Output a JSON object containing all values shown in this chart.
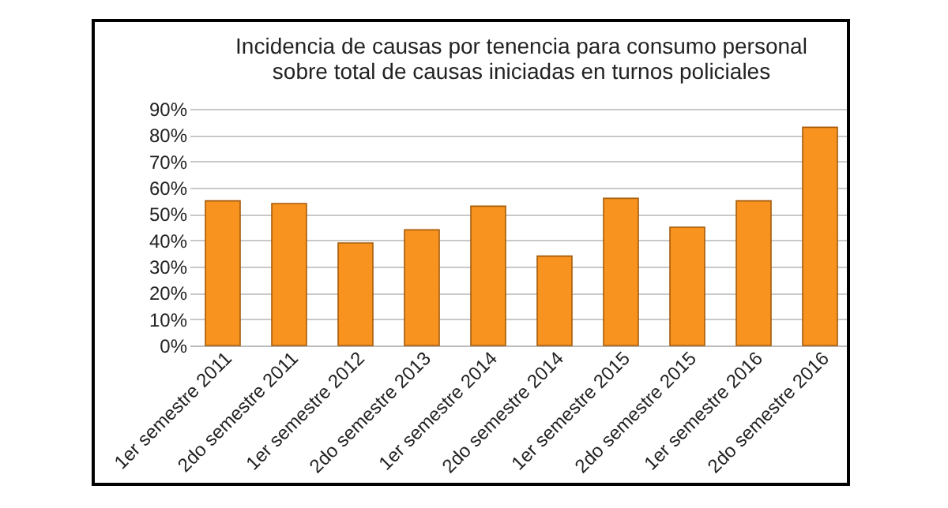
{
  "chart_data": {
    "type": "bar",
    "title": "Incidencia de causas por tenencia para consumo personal\nsobre total de causas iniciadas en turnos policiales",
    "categories": [
      "1er semestre 2011",
      "2do semestre 2011",
      "1er semestre 2012",
      "2do semestre 2013",
      "1er semestre 2014",
      "2do semestre 2014",
      "1er semestre 2015",
      "2do semestre 2015",
      "1er semestre 2016",
      "2do semestre 2016"
    ],
    "values": [
      55,
      54,
      39,
      44,
      53,
      34,
      56,
      45,
      55,
      83
    ],
    "color": "#f7931e",
    "ylim": [
      0,
      90
    ],
    "yticks": [
      {
        "value": 0,
        "label": "0%"
      },
      {
        "value": 10,
        "label": "10%"
      },
      {
        "value": 20,
        "label": "20%"
      },
      {
        "value": 30,
        "label": "30%"
      },
      {
        "value": 40,
        "label": "40%"
      },
      {
        "value": 50,
        "label": "50%"
      },
      {
        "value": 60,
        "label": "60%"
      },
      {
        "value": 70,
        "label": "70%"
      },
      {
        "value": 80,
        "label": "80%"
      },
      {
        "value": 90,
        "label": "90%"
      }
    ],
    "grid": true
  }
}
